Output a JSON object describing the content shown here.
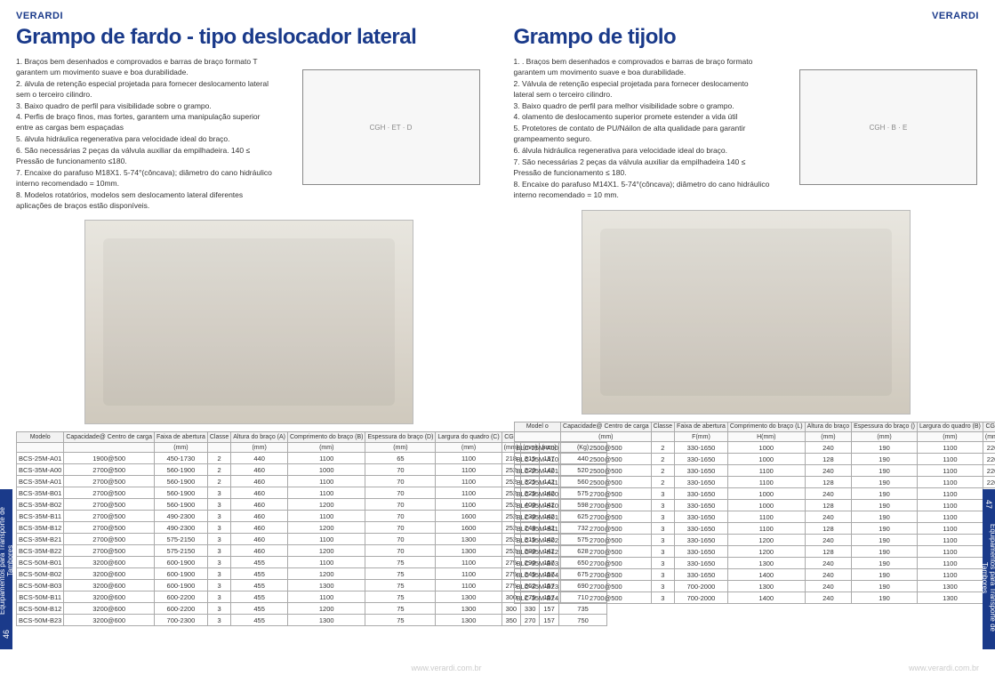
{
  "brand": "VERARDI",
  "footer_url": "www.verardi.com.br",
  "side_tab_text": "Equipamentos para Transporte de Tambores",
  "left": {
    "page_num": "46",
    "title": "Grampo de fardo - tipo deslocador lateral",
    "features": [
      "1. Braços bem desenhados e comprovados e barras de braço formato T garantem um movimento suave e boa durabilidade.",
      "2. álvula de retenção especial projetada para fornecer deslocamento lateral sem o terceiro cilindro.",
      "3. Baixo quadro de perfil para visibilidade sobre o grampo.",
      "4. Perfis de braço finos, mas fortes, garantem uma manipulação superior entre as cargas bem espaçadas",
      "5. álvula hidráulica regenerativa para velocidade ideal do braço.",
      "6. São necessárias 2 peças da válvula auxiliar da empilhadeira. 140 ≤ Pressão de funcionamento ≤180.",
      "7. Encaixe do parafuso M18X1. 5-74°(côncava); diâmetro do cano hidráulico interno recomendado = 10mm.",
      "8. Modelos rotatórios, modelos sem deslocamento lateral diferentes aplicações de braços estão disponíveis."
    ],
    "table": {
      "columns": [
        "Modelo",
        "Capacidade@ Centro de carga",
        "Faixa de abertura",
        "Classe",
        "Altura do braço (A)",
        "Comprimento do braço (B)",
        "Espessura do braço (D)",
        "Largura do quadro (C)",
        "CGV",
        "CGH",
        "ET",
        "Peso de serviço"
      ],
      "units": [
        "",
        "",
        "(mm)",
        "",
        "(mm)",
        "(mm)",
        "(mm)",
        "(mm)",
        "(mm)",
        "(mm)",
        "(mm)",
        "(Kg)"
      ],
      "rows": [
        [
          "BCS-25M-A01",
          "1900@500",
          "450-1730",
          "2",
          "440",
          "1100",
          "65",
          "1100",
          "218",
          "315",
          "137",
          "440"
        ],
        [
          "BCS-35M-A00",
          "2700@500",
          "560-1900",
          "2",
          "460",
          "1000",
          "70",
          "1100",
          "252",
          "320",
          "142",
          "520"
        ],
        [
          "BCS-35M-A01",
          "2700@500",
          "560-1900",
          "2",
          "460",
          "1100",
          "70",
          "1100",
          "252",
          "325",
          "142",
          "560"
        ],
        [
          "BCS-35M-B01",
          "2700@500",
          "560-1900",
          "3",
          "460",
          "1100",
          "70",
          "1100",
          "252",
          "325",
          "142",
          "575"
        ],
        [
          "BCS-35M-B02",
          "2700@500",
          "560-1900",
          "3",
          "460",
          "1200",
          "70",
          "1100",
          "252",
          "400",
          "142",
          "598"
        ],
        [
          "BCS-35M-B11",
          "2700@500",
          "490-2300",
          "3",
          "460",
          "1100",
          "70",
          "1600",
          "252",
          "230",
          "142",
          "625"
        ],
        [
          "BCS-35M-B12",
          "2700@500",
          "490-2300",
          "3",
          "460",
          "1200",
          "70",
          "1600",
          "252",
          "248",
          "142",
          "732"
        ],
        [
          "BCS-35M-B21",
          "2700@500",
          "575-2150",
          "3",
          "460",
          "1100",
          "70",
          "1300",
          "252",
          "315",
          "142",
          "575"
        ],
        [
          "BCS-35M-B22",
          "2700@500",
          "575-2150",
          "3",
          "460",
          "1200",
          "70",
          "1300",
          "252",
          "380",
          "142",
          "628"
        ],
        [
          "BCS-50M-B01",
          "3200@600",
          "600-1900",
          "3",
          "455",
          "1100",
          "75",
          "1100",
          "275",
          "290",
          "157",
          "650"
        ],
        [
          "BCS-50M-B02",
          "3200@600",
          "600-1900",
          "3",
          "455",
          "1200",
          "75",
          "1100",
          "275",
          "345",
          "157",
          "675"
        ],
        [
          "BCS-50M-B03",
          "3200@600",
          "600-1900",
          "3",
          "455",
          "1300",
          "75",
          "1100",
          "275",
          "362",
          "157",
          "690"
        ],
        [
          "BCS-50M-B11",
          "3200@600",
          "600-2200",
          "3",
          "455",
          "1100",
          "75",
          "1300",
          "300",
          "275",
          "157",
          "710"
        ],
        [
          "BCS-50M-B12",
          "3200@600",
          "600-2200",
          "3",
          "455",
          "1200",
          "75",
          "1300",
          "300",
          "330",
          "157",
          "735"
        ],
        [
          "BCS-50M-B23",
          "3200@600",
          "700-2300",
          "3",
          "455",
          "1300",
          "75",
          "1300",
          "350",
          "270",
          "157",
          "750"
        ]
      ]
    }
  },
  "right": {
    "page_num": "47",
    "title": "Grampo de tijolo",
    "features": [
      "1. . Braços bem desenhados e comprovados e barras de braço formato garantem um movimento suave e boa durabilidade.",
      "2. Válvula de retenção especial projetada para fornecer deslocamento lateral sem o terceiro cilindro.",
      "3. Baixo quadro de perfil para melhor visibilidade sobre o grampo.",
      "4. olamento de deslocamento superior promete estender a vida útil",
      "5. Protetores de contato de PU/Náilon de alta qualidade para garantir grampeamento seguro.",
      "6. álvula hidráulica regenerativa para velocidade ideal do braço.",
      "7. São necessárias 2 peças da válvula auxiliar da empilhadeira 140 ≤ Pressão de funcionamento ≤ 180.",
      "8. Encaixe do parafuso M14X1. 5-74°(côncava); diâmetro do cano hidráulico interno recomendado = 10 mm."
    ],
    "table": {
      "columns": [
        "Model o",
        "Capacidade@ Centro de carga",
        "Classe",
        "Faixa de abertura",
        "Comprimento do braço (L)",
        "Altura do braço",
        "Espessura do braço ()",
        "Largura do quadro (B)",
        "CGV",
        "CGH",
        "ET",
        "Peso de serviço"
      ],
      "units": [
        "",
        "(mm)",
        "",
        "F(mm)",
        "H(mm)",
        "(mm)",
        "(mm)",
        "(mm)",
        "(mm)",
        "(mm)",
        "(mm)",
        "(mm)"
      ],
      "rows": [
        [
          "BLC-25M-A00",
          "2500@500",
          "2",
          "330-1650",
          "1000",
          "240",
          "190",
          "1100",
          "220",
          "216",
          "145",
          "790"
        ],
        [
          "BLC-25M-A10",
          "2500@500",
          "2",
          "330-1650",
          "1000",
          "128",
          "190",
          "1100",
          "220",
          "216",
          "145",
          "690"
        ],
        [
          "BLC-25M-A01",
          "2500@500",
          "2",
          "330-1650",
          "1100",
          "240",
          "190",
          "1100",
          "220",
          "220",
          "145",
          "800"
        ],
        [
          "BLC-25M-A11",
          "2500@500",
          "2",
          "330-1650",
          "1100",
          "128",
          "190",
          "1100",
          "220",
          "220",
          "145",
          "700"
        ],
        [
          "BLC-35M-B00",
          "2700@500",
          "3",
          "330-1650",
          "1000",
          "240",
          "190",
          "1100",
          "220",
          "216",
          "145",
          "709"
        ],
        [
          "BLC-35M-B10",
          "2700@500",
          "3",
          "330-1650",
          "1000",
          "128",
          "190",
          "1100",
          "220",
          "216",
          "145",
          "690"
        ],
        [
          "BLC-35M-B01",
          "2700@500",
          "3",
          "330-1650",
          "1100",
          "240",
          "190",
          "1100",
          "220",
          "220",
          "145",
          "800"
        ],
        [
          "BLC-35M-B11",
          "2700@500",
          "3",
          "330-1650",
          "1100",
          "128",
          "190",
          "1100",
          "220",
          "220",
          "145",
          "700"
        ],
        [
          "BLC-35M-B02",
          "2700@500",
          "3",
          "330-1650",
          "1200",
          "240",
          "190",
          "1100",
          "220",
          "240",
          "145",
          "820"
        ],
        [
          "BLC-35M-B12",
          "2700@500",
          "3",
          "330-1650",
          "1200",
          "128",
          "190",
          "1100",
          "220",
          "240",
          "145",
          "720"
        ],
        [
          "BLC-35M-B03",
          "2700@500",
          "3",
          "330-1650",
          "1300",
          "240",
          "190",
          "1100",
          "220",
          "250",
          "145",
          "850"
        ],
        [
          "BLC-35M-B04",
          "2700@500",
          "3",
          "330-1650",
          "1400",
          "240",
          "190",
          "1100",
          "220",
          "270",
          "145",
          "870"
        ],
        [
          "BLC-35M-B23",
          "2700@500",
          "3",
          "700-2000",
          "1300",
          "240",
          "190",
          "1300",
          "220",
          "250",
          "145",
          "870"
        ],
        [
          "BLC-35M-B24",
          "2700@500",
          "3",
          "700-2000",
          "1400",
          "240",
          "190",
          "1300",
          "220",
          "270",
          "145",
          "900"
        ]
      ]
    }
  }
}
